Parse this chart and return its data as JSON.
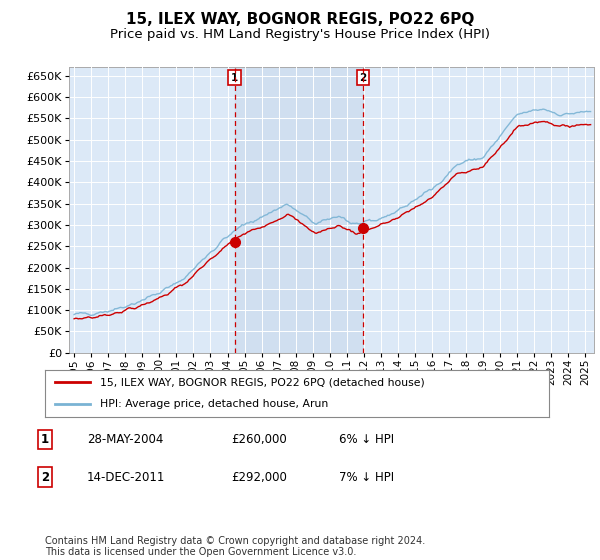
{
  "title": "15, ILEX WAY, BOGNOR REGIS, PO22 6PQ",
  "subtitle": "Price paid vs. HM Land Registry's House Price Index (HPI)",
  "ylim": [
    0,
    670000
  ],
  "yticks": [
    0,
    50000,
    100000,
    150000,
    200000,
    250000,
    300000,
    350000,
    400000,
    450000,
    500000,
    550000,
    600000,
    650000
  ],
  "background_color": "#dce9f7",
  "grid_color": "#ffffff",
  "shade_color": "#ccdcee",
  "sale1_date_num": 2004.41,
  "sale1_price": 260000,
  "sale1_label": "1",
  "sale1_date_str": "28-MAY-2004",
  "sale1_pct": "6% ↓ HPI",
  "sale2_date_num": 2011.95,
  "sale2_price": 292000,
  "sale2_label": "2",
  "sale2_date_str": "14-DEC-2011",
  "sale2_pct": "7% ↓ HPI",
  "legend_line1": "15, ILEX WAY, BOGNOR REGIS, PO22 6PQ (detached house)",
  "legend_line2": "HPI: Average price, detached house, Arun",
  "footer": "Contains HM Land Registry data © Crown copyright and database right 2024.\nThis data is licensed under the Open Government Licence v3.0.",
  "hpi_color": "#7ab3d4",
  "price_color": "#cc0000",
  "dashed_line_color": "#cc0000",
  "fig_bg": "#ffffff",
  "title_fontsize": 11,
  "subtitle_fontsize": 9.5,
  "tick_fontsize": 8,
  "note_fontsize": 7,
  "xstart": 1994.7,
  "xend": 2025.5
}
